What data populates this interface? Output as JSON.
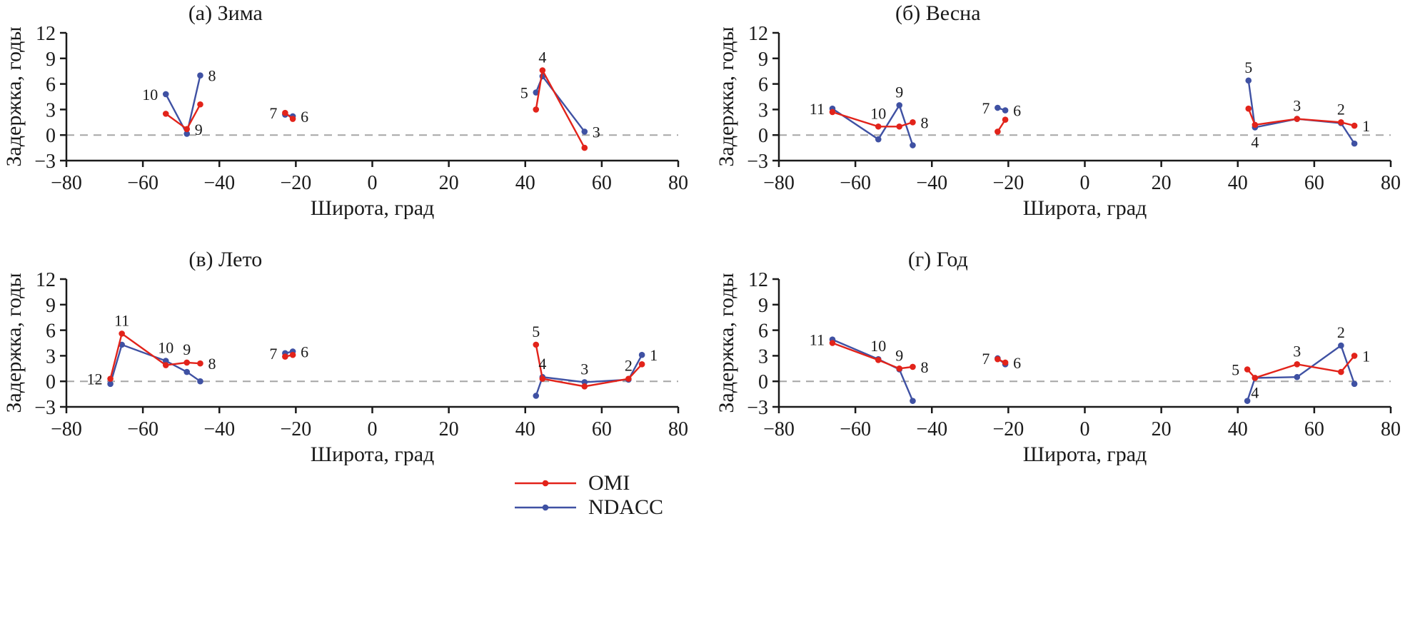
{
  "chart_data": {
    "type": "line",
    "xlabel": "Широта, град",
    "ylabel": "Задержка, годы",
    "xlim": [
      -80,
      80
    ],
    "ylim": [
      -3,
      12
    ],
    "xticks": [
      -80,
      -60,
      -40,
      -20,
      0,
      20,
      40,
      60,
      80
    ],
    "yticks": [
      -3,
      0,
      3,
      6,
      9,
      12
    ],
    "grid": false,
    "legend_position": "bottom-center",
    "series_meta": [
      {
        "name": "OMI",
        "color": "#e2231a"
      },
      {
        "name": "NDACC",
        "color": "#3f51a3"
      }
    ],
    "colors": {
      "OMI": "#e2231a",
      "NDACC": "#3f51a3",
      "zero_line": "#a6a6a6",
      "axis": "#1a1a1a"
    },
    "panels": [
      {
        "id": "a",
        "title": "(а) Зима",
        "groups": [
          {
            "stations": [
              {
                "n": "10",
                "lat": -54,
                "omi": 2.5,
                "ndacc": 4.8,
                "lp": "left"
              },
              {
                "n": "9",
                "lat": -48.5,
                "omi": 0.7,
                "ndacc": 0.15,
                "lp": "right"
              },
              {
                "n": "8",
                "lat": -45,
                "omi": 3.6,
                "ndacc": 7.0,
                "lp": "right"
              }
            ]
          },
          {
            "stations": [
              {
                "n": "7",
                "lat": -22.8,
                "omi": 2.6,
                "ndacc": 2.4,
                "lp": "left"
              },
              {
                "n": "6",
                "lat": -20.8,
                "omi": 1.9,
                "ndacc": 2.2,
                "lp": "right"
              }
            ]
          },
          {
            "stations": [
              {
                "n": "5",
                "lat": 42.8,
                "omi": 3.0,
                "ndacc": 5.0,
                "lp": "left"
              },
              {
                "n": "4",
                "lat": 44.5,
                "omi": 7.6,
                "ndacc": 6.9,
                "lp": "above"
              },
              {
                "n": "3",
                "lat": 55.5,
                "omi": -1.5,
                "ndacc": 0.4,
                "lp": "right"
              }
            ]
          }
        ]
      },
      {
        "id": "b",
        "title": "(б) Весна",
        "groups": [
          {
            "stations": [
              {
                "n": "11",
                "lat": -66,
                "omi": 2.7,
                "ndacc": 3.1,
                "lp": "left"
              },
              {
                "n": "10",
                "lat": -54,
                "omi": 1.0,
                "ndacc": -0.5,
                "lp": "above"
              },
              {
                "n": "9",
                "lat": -48.5,
                "omi": 1.0,
                "ndacc": 3.5,
                "lp": "above"
              },
              {
                "n": "8",
                "lat": -45,
                "omi": 1.5,
                "ndacc": -1.2,
                "lp": "right"
              }
            ]
          },
          {
            "stations": [
              {
                "n": "7",
                "lat": -22.8,
                "omi": 0.4,
                "ndacc": 3.2,
                "lp": "left"
              },
              {
                "n": "6",
                "lat": -20.8,
                "omi": 1.8,
                "ndacc": 2.9,
                "lp": "right"
              }
            ]
          },
          {
            "stations": [
              {
                "n": "5",
                "lat": 42.8,
                "omi": 3.1,
                "ndacc": 6.4,
                "lp": "above"
              },
              {
                "n": "4",
                "lat": 44.5,
                "omi": 1.2,
                "ndacc": 0.9,
                "lp": "below"
              },
              {
                "n": "3",
                "lat": 55.5,
                "omi": 1.9,
                "ndacc": 1.9,
                "lp": "above"
              },
              {
                "n": "2",
                "lat": 67,
                "omi": 1.5,
                "ndacc": 1.4,
                "lp": "above"
              },
              {
                "n": "1",
                "lat": 70.5,
                "omi": 1.1,
                "ndacc": -1.0,
                "lp": "right"
              }
            ]
          }
        ]
      },
      {
        "id": "v",
        "title": "(в) Лето",
        "groups": [
          {
            "stations": [
              {
                "n": "12",
                "lat": -68.5,
                "omi": 0.3,
                "ndacc": -0.3,
                "lp": "left"
              },
              {
                "n": "11",
                "lat": -65.5,
                "omi": 5.6,
                "ndacc": 4.3,
                "lp": "above"
              },
              {
                "n": "10",
                "lat": -54,
                "omi": 1.9,
                "ndacc": 2.4,
                "lp": "above"
              },
              {
                "n": "9",
                "lat": -48.5,
                "omi": 2.2,
                "ndacc": 1.1,
                "lp": "above"
              },
              {
                "n": "8",
                "lat": -45,
                "omi": 2.1,
                "ndacc": 0.0,
                "lp": "right"
              }
            ]
          },
          {
            "stations": [
              {
                "n": "7",
                "lat": -22.8,
                "omi": 2.9,
                "ndacc": 3.3,
                "lp": "left"
              },
              {
                "n": "6",
                "lat": -20.8,
                "omi": 3.1,
                "ndacc": 3.5,
                "lp": "right"
              }
            ]
          },
          {
            "stations": [
              {
                "n": "5",
                "lat": 42.8,
                "omi": 4.3,
                "ndacc": -1.7,
                "lp": "above"
              },
              {
                "n": "4",
                "lat": 44.5,
                "omi": 0.3,
                "ndacc": 0.5,
                "lp": "above"
              },
              {
                "n": "3",
                "lat": 55.5,
                "omi": -0.6,
                "ndacc": -0.1,
                "lp": "above"
              },
              {
                "n": "2",
                "lat": 67,
                "omi": 0.3,
                "ndacc": 0.2,
                "lp": "above"
              },
              {
                "n": "1",
                "lat": 70.5,
                "omi": 2.0,
                "ndacc": 3.1,
                "lp": "right"
              }
            ]
          }
        ]
      },
      {
        "id": "g",
        "title": "(г) Год",
        "groups": [
          {
            "stations": [
              {
                "n": "11",
                "lat": -66,
                "omi": 4.5,
                "ndacc": 4.9,
                "lp": "left"
              },
              {
                "n": "10",
                "lat": -54,
                "omi": 2.5,
                "ndacc": 2.6,
                "lp": "above"
              },
              {
                "n": "9",
                "lat": -48.5,
                "omi": 1.5,
                "ndacc": 1.4,
                "lp": "above"
              },
              {
                "n": "8",
                "lat": -45,
                "omi": 1.7,
                "ndacc": -2.3,
                "lp": "right"
              }
            ]
          },
          {
            "stations": [
              {
                "n": "7",
                "lat": -22.8,
                "omi": 2.6,
                "ndacc": 2.7,
                "lp": "left"
              },
              {
                "n": "6",
                "lat": -20.8,
                "omi": 2.2,
                "ndacc": 2.0,
                "lp": "right"
              }
            ]
          },
          {
            "stations": [
              {
                "n": "5",
                "lat": 42.5,
                "omi": 1.4,
                "ndacc": -2.3,
                "lp": "left"
              },
              {
                "n": "4",
                "lat": 44.5,
                "omi": 0.4,
                "ndacc": 0.4,
                "lp": "below"
              },
              {
                "n": "3",
                "lat": 55.5,
                "omi": 2.0,
                "ndacc": 0.5,
                "lp": "above"
              },
              {
                "n": "2",
                "lat": 67,
                "omi": 1.1,
                "ndacc": 4.2,
                "lp": "above"
              },
              {
                "n": "1",
                "lat": 70.5,
                "omi": 3.0,
                "ndacc": -0.3,
                "lp": "right"
              }
            ]
          }
        ]
      }
    ]
  }
}
